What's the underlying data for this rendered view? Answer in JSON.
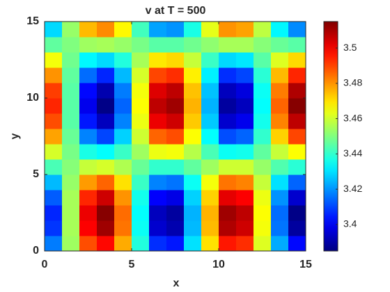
{
  "chart_data": {
    "type": "heatmap",
    "title": "v at T = 500",
    "xlabel": "x",
    "ylabel": "y",
    "colormap": "jet",
    "x": [
      0.5,
      1.5,
      2.5,
      3.5,
      4.5,
      5.5,
      6.5,
      7.5,
      8.5,
      9.5,
      10.5,
      11.5,
      12.5,
      13.5,
      14.5
    ],
    "y": [
      0.5,
      1.5,
      2.5,
      3.5,
      4.5,
      5.5,
      6.5,
      7.5,
      8.5,
      9.5,
      10.5,
      11.5,
      12.5,
      13.5,
      14.5
    ],
    "values": [
      [
        3.417,
        3.454,
        3.489,
        3.498,
        3.477,
        3.438,
        3.407,
        3.404,
        3.43,
        3.47,
        3.496,
        3.493,
        3.462,
        3.423,
        3.402
      ],
      [
        3.408,
        3.455,
        3.499,
        3.511,
        3.484,
        3.435,
        3.395,
        3.391,
        3.425,
        3.475,
        3.509,
        3.505,
        3.465,
        3.416,
        3.389
      ],
      [
        3.406,
        3.455,
        3.501,
        3.514,
        3.485,
        3.434,
        3.393,
        3.389,
        3.424,
        3.476,
        3.511,
        3.507,
        3.466,
        3.415,
        3.386
      ],
      [
        3.413,
        3.455,
        3.494,
        3.505,
        3.48,
        3.436,
        3.401,
        3.398,
        3.428,
        3.472,
        3.502,
        3.499,
        3.464,
        3.42,
        3.395
      ],
      [
        3.425,
        3.453,
        3.479,
        3.486,
        3.47,
        3.441,
        3.418,
        3.416,
        3.435,
        3.465,
        3.484,
        3.482,
        3.459,
        3.43,
        3.414
      ],
      [
        3.443,
        3.451,
        3.459,
        3.461,
        3.456,
        3.447,
        3.44,
        3.44,
        3.446,
        3.454,
        3.46,
        3.46,
        3.453,
        3.444,
        3.439
      ],
      [
        3.461,
        3.449,
        3.437,
        3.434,
        3.441,
        3.454,
        3.464,
        3.465,
        3.457,
        3.443,
        3.435,
        3.436,
        3.446,
        3.459,
        3.466
      ],
      [
        3.478,
        3.447,
        3.418,
        3.41,
        3.428,
        3.46,
        3.486,
        3.489,
        3.466,
        3.434,
        3.411,
        3.414,
        3.44,
        3.472,
        3.49
      ],
      [
        3.489,
        3.445,
        3.404,
        3.393,
        3.418,
        3.464,
        3.501,
        3.505,
        3.473,
        3.427,
        3.395,
        3.399,
        3.436,
        3.482,
        3.507
      ],
      [
        3.494,
        3.445,
        3.399,
        3.386,
        3.414,
        3.466,
        3.507,
        3.511,
        3.476,
        3.424,
        3.389,
        3.393,
        3.434,
        3.486,
        3.514
      ],
      [
        3.491,
        3.445,
        3.402,
        3.391,
        3.417,
        3.465,
        3.503,
        3.507,
        3.474,
        3.426,
        3.393,
        3.397,
        3.435,
        3.483,
        3.509
      ],
      [
        3.48,
        3.446,
        3.415,
        3.406,
        3.425,
        3.461,
        3.49,
        3.493,
        3.468,
        3.432,
        3.407,
        3.41,
        3.439,
        3.475,
        3.494
      ],
      [
        3.465,
        3.448,
        3.433,
        3.429,
        3.438,
        3.455,
        3.469,
        3.471,
        3.459,
        3.441,
        3.429,
        3.431,
        3.445,
        3.462,
        3.471
      ],
      [
        3.446,
        3.45,
        3.454,
        3.455,
        3.453,
        3.449,
        3.445,
        3.445,
        3.448,
        3.452,
        3.455,
        3.455,
        3.451,
        3.447,
        3.445
      ],
      [
        3.429,
        3.453,
        3.475,
        3.481,
        3.467,
        3.442,
        3.422,
        3.42,
        3.437,
        3.463,
        3.48,
        3.478,
        3.458,
        3.433,
        3.419
      ]
    ],
    "xlim": [
      0,
      15
    ],
    "xticks": [
      0,
      5,
      10,
      15
    ],
    "ylim": [
      0,
      15
    ],
    "yticks": [
      0,
      5,
      10,
      15
    ],
    "clim": [
      3.385,
      3.515
    ],
    "cticks": [
      3.4,
      3.42,
      3.44,
      3.46,
      3.48,
      3.5
    ]
  }
}
